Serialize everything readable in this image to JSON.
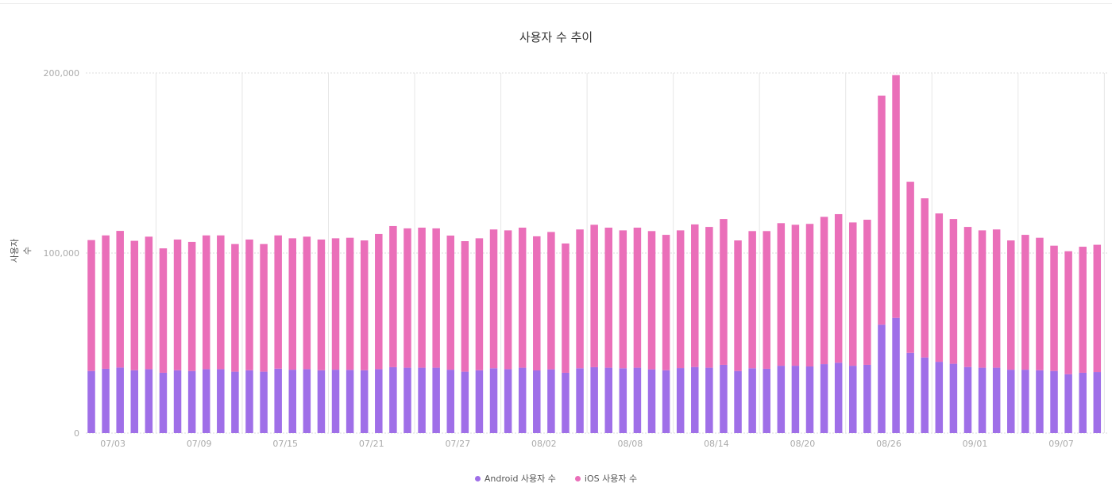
{
  "chart_data": {
    "type": "bar",
    "stacked": true,
    "title": "사용자 수 추이",
    "xlabel": "",
    "ylabel": "사용자 수",
    "ylim": [
      0,
      200000
    ],
    "y_ticks": [
      "0",
      "100,000",
      "200,000"
    ],
    "y_tick_values": [
      0,
      100000,
      200000
    ],
    "x_tick_labels": [
      "07/03",
      "07/09",
      "07/15",
      "07/21",
      "07/27",
      "08/02",
      "08/08",
      "08/14",
      "08/20",
      "08/26",
      "09/01",
      "09/07"
    ],
    "grid": true,
    "legend_position": "bottom",
    "categories": [
      "07/01",
      "07/02",
      "07/03",
      "07/04",
      "07/05",
      "07/06",
      "07/07",
      "07/08",
      "07/09",
      "07/10",
      "07/11",
      "07/12",
      "07/13",
      "07/14",
      "07/15",
      "07/16",
      "07/17",
      "07/18",
      "07/19",
      "07/20",
      "07/21",
      "07/22",
      "07/23",
      "07/24",
      "07/25",
      "07/26",
      "07/27",
      "07/28",
      "07/29",
      "07/30",
      "07/31",
      "08/01",
      "08/02",
      "08/03",
      "08/04",
      "08/05",
      "08/06",
      "08/07",
      "08/08",
      "08/09",
      "08/10",
      "08/11",
      "08/12",
      "08/13",
      "08/14",
      "08/15",
      "08/16",
      "08/17",
      "08/18",
      "08/19",
      "08/20",
      "08/21",
      "08/22",
      "08/23",
      "08/24",
      "08/25",
      "08/26",
      "08/27",
      "08/28",
      "08/29",
      "08/30",
      "08/31",
      "09/01",
      "09/02",
      "09/03",
      "09/04",
      "09/05",
      "09/06",
      "09/07",
      "09/08",
      "09/09"
    ],
    "series": [
      {
        "name": "Android 사용자 수",
        "color": "#9f6fe8",
        "values": [
          34500,
          35700,
          36400,
          34900,
          35500,
          33500,
          34900,
          34500,
          35500,
          35500,
          34100,
          34900,
          34100,
          35800,
          35200,
          35500,
          34900,
          35200,
          35100,
          34900,
          35500,
          36600,
          36300,
          36300,
          36300,
          35200,
          34100,
          34900,
          36000,
          35500,
          36300,
          34800,
          35400,
          33500,
          36000,
          36600,
          36300,
          36000,
          36300,
          35400,
          34900,
          36100,
          36700,
          36300,
          37900,
          34500,
          36000,
          35700,
          37400,
          37400,
          37000,
          38300,
          39100,
          37400,
          37900,
          60200,
          64000,
          44600,
          42000,
          39600,
          38500,
          36700,
          36300,
          36300,
          35200,
          35200,
          34900,
          34500,
          32700,
          33500,
          33900
        ]
      },
      {
        "name": "iOS 사용자 수",
        "color": "#ea6fb9",
        "values": [
          72700,
          74100,
          75900,
          71900,
          73600,
          69100,
          72600,
          71700,
          74300,
          74300,
          70900,
          72600,
          70900,
          74000,
          73000,
          73600,
          72600,
          73000,
          73400,
          72100,
          75100,
          78400,
          77400,
          77800,
          77400,
          74500,
          72500,
          73300,
          77100,
          77100,
          77800,
          74500,
          76300,
          71800,
          77100,
          79100,
          77800,
          76600,
          77800,
          76800,
          75200,
          76500,
          79200,
          78200,
          81000,
          72500,
          76200,
          76500,
          79200,
          78300,
          79200,
          81800,
          82500,
          79600,
          80600,
          127200,
          134800,
          95000,
          88400,
          82400,
          80400,
          77800,
          76300,
          76800,
          71800,
          74900,
          73600,
          69600,
          68300,
          70000,
          70700
        ]
      }
    ]
  }
}
